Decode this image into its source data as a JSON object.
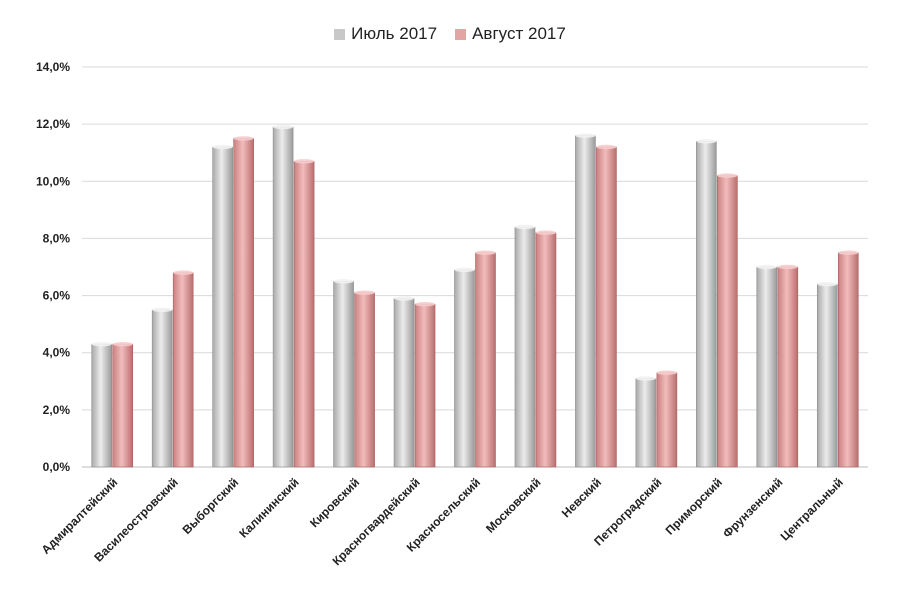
{
  "chart_data": {
    "type": "bar",
    "categories": [
      "Адмиралтейский",
      "Василеостровский",
      "Выборгский",
      "Калининский",
      "Кировский",
      "Красногвардейский",
      "Красносельский",
      "Московский",
      "Невский",
      "Петроградский",
      "Приморский",
      "Фрунзенский",
      "Центральный"
    ],
    "series": [
      {
        "name": "Июль 2017",
        "values": [
          4.3,
          5.5,
          11.2,
          11.9,
          6.5,
          5.9,
          6.9,
          8.4,
          11.6,
          3.1,
          11.4,
          7.0,
          6.4
        ],
        "color": "#c8c8c8"
      },
      {
        "name": "Август 2017",
        "values": [
          4.3,
          6.8,
          11.5,
          10.7,
          6.1,
          5.7,
          7.5,
          8.2,
          11.2,
          3.3,
          10.2,
          7.0,
          7.5
        ],
        "color": "#e3a4a4"
      }
    ],
    "y_ticks": [
      "0,0%",
      "2,0%",
      "4,0%",
      "6,0%",
      "8,0%",
      "10,0%",
      "12,0%",
      "14,0%"
    ],
    "ylim": [
      0,
      14
    ],
    "grid": true,
    "legend_position": "top-center",
    "title": "",
    "xlabel": "",
    "ylabel": ""
  }
}
